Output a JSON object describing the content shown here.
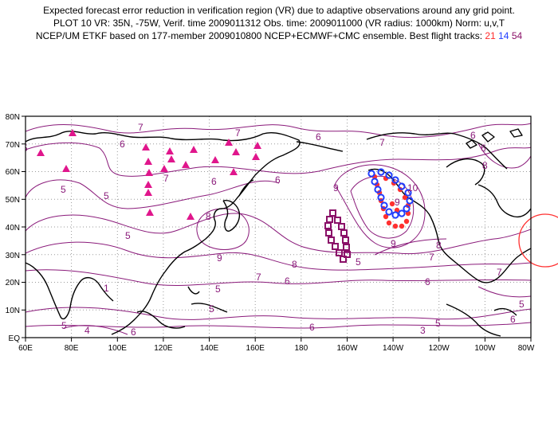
{
  "header": {
    "line1": "Expected forecast error reduction in verification region (VR) due to adaptive observations around any grid point.",
    "line2": "PLOT 10 VR: 35N, -75W, Verif. time 2009011312 Obs. time: 2009011000 (VR radius: 1000km) Norm: u,v,T",
    "line3_prefix": "NCEP/UM ETKF based on 177-member 2009010800 NCEP+ECMWF+CMC ensemble. Best flight tracks:",
    "tracks": [
      "21",
      "14",
      "54"
    ]
  },
  "map": {
    "lat_labels": [
      "80N",
      "70N",
      "60N",
      "50N",
      "40N",
      "30N",
      "20N",
      "10N",
      "EQ"
    ],
    "lon_labels": [
      "60E",
      "80E",
      "100E",
      "120E",
      "140E",
      "160E",
      "180",
      "160W",
      "140W",
      "120W",
      "100W",
      "80W"
    ],
    "contour_labels": [
      "7",
      "6",
      "7",
      "5",
      "6",
      "5",
      "6",
      "6",
      "7",
      "6",
      "9",
      "10",
      "7",
      "8",
      "8",
      "9",
      "8",
      "7",
      "8",
      "5",
      "9",
      "7",
      "6",
      "7",
      "6",
      "5",
      "5",
      "4",
      "6",
      "6",
      "5",
      "5",
      "3",
      "5",
      "5",
      "6",
      "5",
      "9",
      "6",
      "1"
    ],
    "colors": {
      "contour": "#8a1a7a",
      "coast": "#000000",
      "grid": "#9a9a9a",
      "track21": "#ff3030",
      "track14": "#1f3dff",
      "track54": "#8a1068",
      "stations": "#e0168c",
      "vr_circle": "#ff3030"
    }
  }
}
